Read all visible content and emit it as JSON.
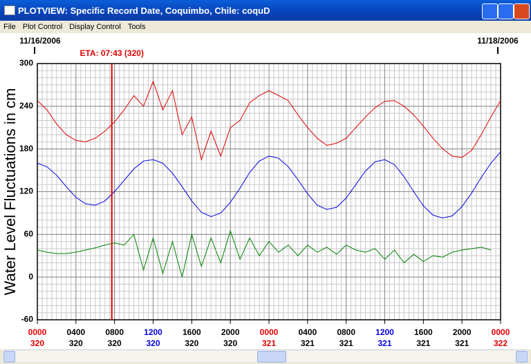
{
  "window": {
    "title": "PLOTVIEW: Specific Record Date, Coquimbo, Chile: coquD",
    "menu": [
      "File",
      "Plot Control",
      "Display Control",
      "Tools"
    ]
  },
  "chart_data": {
    "type": "line",
    "y_label": "Water Level Fluctuations in cm",
    "start_date": "11/16/2006",
    "end_date": "11/18/2006",
    "annotation": {
      "label": "ETA: 07:43 (320)",
      "x": 7.7167,
      "color": "#e00000"
    },
    "x": [
      0,
      1,
      2,
      3,
      4,
      5,
      6,
      7,
      8,
      9,
      10,
      11,
      12,
      13,
      14,
      15,
      16,
      17,
      18,
      19,
      20,
      21,
      22,
      23,
      24,
      25,
      26,
      27,
      28,
      29,
      30,
      31,
      32,
      33,
      34,
      35,
      36,
      37,
      38,
      39,
      40,
      41,
      42,
      43,
      44,
      45,
      46,
      47,
      48
    ],
    "series": [
      {
        "color": "#e00000",
        "values": [
          248,
          235,
          215,
          200,
          192,
          190,
          195,
          205,
          218,
          235,
          255,
          240,
          275,
          235,
          262,
          200,
          225,
          165,
          205,
          170,
          210,
          220,
          245,
          255,
          262,
          255,
          248,
          228,
          210,
          195,
          185,
          188,
          195,
          210,
          225,
          238,
          247,
          248,
          240,
          228,
          212,
          195,
          180,
          170,
          168,
          178,
          200,
          225,
          248
        ]
      },
      {
        "color": "#0000e0",
        "values": [
          160,
          155,
          143,
          127,
          112,
          103,
          101,
          107,
          120,
          136,
          152,
          163,
          165,
          160,
          146,
          127,
          107,
          91,
          85,
          90,
          105,
          125,
          147,
          163,
          170,
          167,
          155,
          137,
          117,
          101,
          95,
          98,
          111,
          130,
          149,
          162,
          165,
          158,
          141,
          120,
          100,
          87,
          83,
          86,
          99,
          118,
          140,
          160,
          176
        ]
      },
      {
        "color": "#008000",
        "values": [
          38,
          35,
          33,
          33,
          35,
          38,
          41,
          45,
          48,
          45,
          60,
          10,
          55,
          5,
          50,
          0,
          60,
          15,
          55,
          20,
          65,
          25,
          55,
          30,
          50,
          35,
          45,
          30,
          45,
          35,
          42,
          32,
          45,
          38,
          35,
          40,
          25,
          38,
          20,
          32,
          22,
          30,
          28,
          35,
          38,
          40,
          42,
          38,
          null
        ]
      }
    ],
    "xlim": [
      0,
      48
    ],
    "ylim": [
      -60,
      300
    ],
    "yticks": [
      -60,
      0,
      60,
      120,
      180,
      240,
      300
    ],
    "xticks": [
      {
        "value": 0,
        "label": "0000"
      },
      {
        "value": 4,
        "label": "0400"
      },
      {
        "value": 8,
        "label": "0800"
      },
      {
        "value": 12,
        "label": "1200"
      },
      {
        "value": 16,
        "label": "1600"
      },
      {
        "value": 20,
        "label": "2000"
      },
      {
        "value": 24,
        "label": "0000"
      },
      {
        "value": 28,
        "label": "0400"
      },
      {
        "value": 32,
        "label": "0800"
      },
      {
        "value": 36,
        "label": "1200"
      },
      {
        "value": 40,
        "label": "1600"
      },
      {
        "value": 44,
        "label": "2000"
      },
      {
        "value": 48,
        "label": "0000"
      }
    ],
    "xtick_days": [
      "320",
      "320",
      "320",
      "320",
      "320",
      "320",
      "321",
      "321",
      "321",
      "321",
      "321",
      "321",
      "322"
    ],
    "xtick_colors": [
      "#e00000",
      "#000000",
      "#000000",
      "#0000e0",
      "#000000",
      "#000000",
      "#e00000",
      "#000000",
      "#000000",
      "#0000e0",
      "#000000",
      "#000000",
      "#e00000"
    ],
    "grid": true,
    "minor_x_step": 0.5,
    "minor_y_step": 10
  }
}
